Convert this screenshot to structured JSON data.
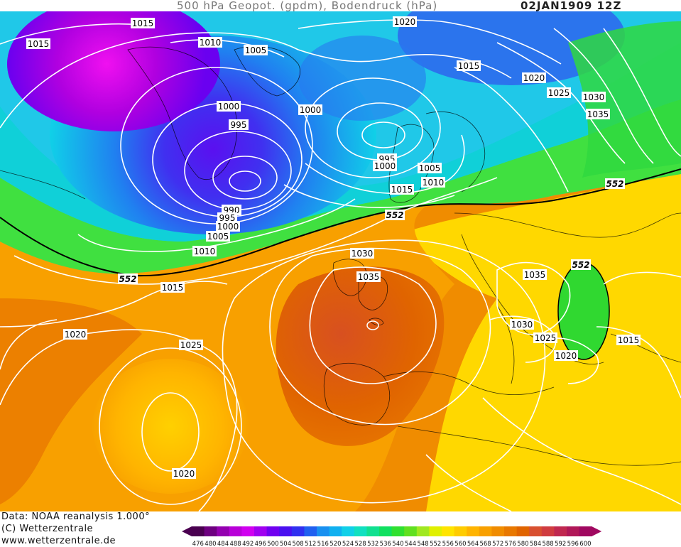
{
  "header": {
    "title": "500 hPa Geopot. (gpdm), Bodendruck (hPa)",
    "date": "02JAN1909 12Z"
  },
  "footer": {
    "line1": "Data: NOAA reanalysis 1.000°",
    "line2": "(C) Wetterzentrale",
    "line3": "www.wetterzentrale.de"
  },
  "map": {
    "isobar_color": "#ffffff",
    "geopotential_contour_color": "#000000",
    "isobar_labels": [
      "1015",
      "1015",
      "1010",
      "1005",
      "1020",
      "1015",
      "1020",
      "1025",
      "1030",
      "1035",
      "1000",
      "1000",
      "995",
      "995",
      "1000",
      "1005",
      "1010",
      "1015",
      "990",
      "995",
      "1000",
      "1005",
      "1010",
      "552",
      "552",
      "552",
      "1030",
      "1035",
      "1035",
      "1030",
      "1025",
      "1020",
      "552",
      "1015",
      "1015",
      "1020",
      "1025",
      "1020"
    ]
  },
  "legend": {
    "values": [
      "476",
      "480",
      "484",
      "488",
      "492",
      "496",
      "500",
      "504",
      "508",
      "512",
      "516",
      "520",
      "524",
      "528",
      "532",
      "536",
      "540",
      "544",
      "548",
      "552",
      "556",
      "560",
      "564",
      "568",
      "572",
      "576",
      "580",
      "584",
      "588",
      "592",
      "596",
      "600"
    ],
    "colors": [
      "#4a0050",
      "#6e0080",
      "#9400b0",
      "#b800d8",
      "#d000f0",
      "#a000f0",
      "#7000f0",
      "#4a10f0",
      "#3030f0",
      "#2060f0",
      "#1890f0",
      "#10b0f0",
      "#10d0e8",
      "#10e0c0",
      "#10e090",
      "#10e060",
      "#30e030",
      "#60e020",
      "#a0e820",
      "#e0f000",
      "#ffe400",
      "#ffcc00",
      "#ffb400",
      "#f8a000",
      "#f08c00",
      "#e87800",
      "#e06400",
      "#d85030",
      "#d03c40",
      "#c02850",
      "#b01858",
      "#a00860"
    ]
  }
}
